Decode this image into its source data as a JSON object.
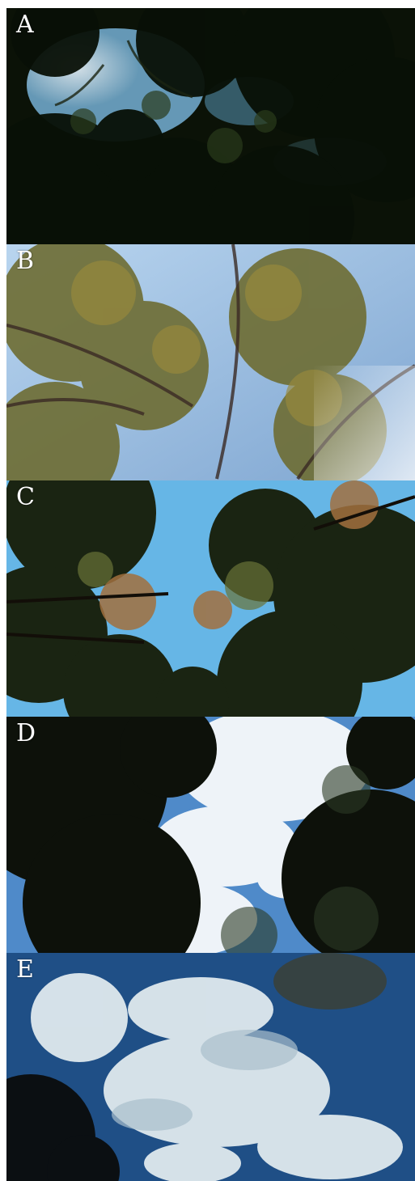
{
  "panels": [
    {
      "label": "A",
      "scene": "dense-dark-canopy",
      "colors": {
        "sky": "#cfe6f2",
        "foliage": "#0b1207"
      }
    },
    {
      "label": "B",
      "scene": "sunlit-canopy",
      "colors": {
        "sky": "#9ec3e3",
        "foliage": "#7a7a3a"
      }
    },
    {
      "label": "C",
      "scene": "blue-sky-canopy-gap",
      "colors": {
        "sky": "#66b6e6",
        "foliage": "#1e2614"
      }
    },
    {
      "label": "D",
      "scene": "cloudy-sky-canopy",
      "colors": {
        "sky": "#e7eef6",
        "foliage": "#0e120b"
      }
    },
    {
      "label": "E",
      "scene": "open-sky-clouds",
      "colors": {
        "sky": "#1f4f86",
        "foliage": "#0b0f12"
      }
    }
  ]
}
